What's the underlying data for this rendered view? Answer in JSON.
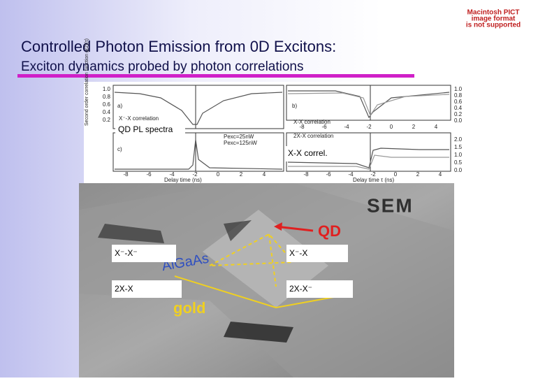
{
  "pict_notice": [
    "Macintosh PICT",
    "image format",
    "is not supported"
  ],
  "title": "Controlled Photon Emission from 0D Excitons:",
  "subtitle": "Exciton dynamics probed by photon correlations",
  "graphs": {
    "y_axis_label": "Second order correlation function g(2)(τ)",
    "left_ticks": [
      "1.0",
      "0.8",
      "0.6",
      "0.4",
      "0.2"
    ],
    "right_ticks_top": [
      "1.0",
      "0.8",
      "0.6",
      "0.4",
      "0.2",
      "0.0"
    ],
    "right_ticks_bottom": [
      "2.0",
      "1.5",
      "1.0",
      "0.5",
      "0.0"
    ],
    "x_ticks": [
      "-8",
      "-6",
      "-4",
      "-2",
      "0",
      "2",
      "4"
    ],
    "panel_a": "a)",
    "panel_b": "b)",
    "panel_c": "c)",
    "a_caption": "X⁻-X correlation",
    "b_caption": "X-X correlation",
    "d_caption": "2X-X correlation",
    "legend": [
      "Pexc=25nW",
      "Pexc=125nW"
    ],
    "x_label_left": "Delay time (ns)",
    "x_label_right": "Delay time τ (ns)"
  },
  "overlays": {
    "qd_pl": "QD PL spectra",
    "xx_correl": "X-X correl."
  },
  "sem": {
    "title": "SEM",
    "qd": "QD",
    "algaas": "AlGaAs",
    "gold": "gold"
  },
  "labels": [
    "X⁻-X⁻",
    "X⁻-X",
    "2X-X",
    "2X-X⁻"
  ]
}
